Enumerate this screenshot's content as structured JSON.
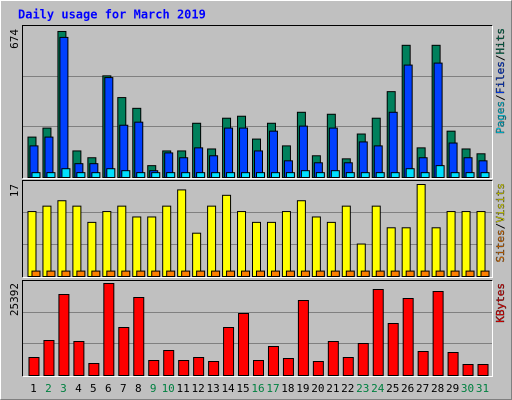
{
  "chart_data": {
    "type": "bar",
    "title": "Daily usage for March 2019",
    "categories": [
      "1",
      "2",
      "3",
      "4",
      "5",
      "6",
      "7",
      "8",
      "9",
      "10",
      "11",
      "12",
      "13",
      "14",
      "15",
      "16",
      "17",
      "18",
      "19",
      "20",
      "21",
      "22",
      "23",
      "24",
      "25",
      "26",
      "27",
      "28",
      "29",
      "30",
      "31"
    ],
    "category_colors": [
      "#000000",
      "#008040",
      "#008040",
      "#000000",
      "#000000",
      "#000000",
      "#000000",
      "#000000",
      "#008040",
      "#008040",
      "#000000",
      "#000000",
      "#000000",
      "#000000",
      "#000000",
      "#008040",
      "#008040",
      "#000000",
      "#000000",
      "#000000",
      "#000000",
      "#000000",
      "#008040",
      "#008040",
      "#000000",
      "#000000",
      "#000000",
      "#000000",
      "#000000",
      "#008040",
      "#008040"
    ],
    "legend_separator": "/",
    "panels": [
      {
        "ylim": [
          0,
          674
        ],
        "yticks": [
          674
        ],
        "series": [
          {
            "name": "Hits",
            "color": "#00805c",
            "values": [
              184,
              225,
              665,
              121,
              90,
              463,
              364,
              315,
              54,
              121,
              121,
              247,
              130,
              270,
              279,
              175,
              247,
              144,
              297,
              99,
              288,
              85,
              198,
              270,
              391,
              602,
              135,
              602,
              211,
              130,
              108
            ]
          },
          {
            "name": "Files",
            "color": "#0040ff",
            "values": [
              144,
              184,
              638,
              63,
              63,
              455,
              238,
              252,
              31,
              112,
              90,
              135,
              99,
              225,
              225,
              121,
              211,
              76,
              234,
              67,
              225,
              67,
              162,
              144,
              297,
              512,
              90,
              521,
              157,
              90,
              76
            ]
          },
          {
            "name": "Pages",
            "color": "#00e0ff",
            "values": [
              22,
              22,
              40,
              22,
              22,
              40,
              31,
              22,
              22,
              22,
              22,
              22,
              22,
              22,
              22,
              22,
              22,
              22,
              31,
              22,
              31,
              22,
              22,
              22,
              22,
              40,
              22,
              54,
              22,
              22,
              22
            ]
          }
        ]
      },
      {
        "ylim": [
          0,
          17
        ],
        "yticks": [
          17
        ],
        "series": [
          {
            "name": "Visits",
            "color": "#ffff00",
            "values": [
              12,
              13,
              14,
              13,
              10,
              12,
              13,
              11,
              11,
              13,
              16,
              8,
              13,
              15,
              12,
              10,
              10,
              12,
              14,
              11,
              10,
              13,
              6,
              13,
              9,
              9,
              17,
              9,
              12,
              12,
              12
            ]
          },
          {
            "name": "Sites",
            "color": "#ff8000",
            "values": [
              1,
              1,
              1,
              1,
              1,
              1,
              1,
              1,
              1,
              1,
              1,
              1,
              1,
              1,
              1,
              1,
              1,
              1,
              1,
              1,
              1,
              1,
              1,
              1,
              1,
              1,
              1,
              1,
              1,
              1,
              1
            ]
          }
        ]
      },
      {
        "ylim": [
          0,
          25392
        ],
        "yticks": [
          25392
        ],
        "series": [
          {
            "name": "KBytes",
            "color": "#ff0000",
            "values": [
              4968,
              9660,
              22356,
              9384,
              3312,
              25392,
              13248,
              21528,
              4140,
              6900,
              4140,
              4968,
              3864,
              13248,
              17112,
              4140,
              8004,
              4692,
              20700,
              3864,
              9384,
              4968,
              8832,
              23736,
              14352,
              21252,
              6624,
              23184,
              6348,
              3036,
              3036
            ]
          }
        ]
      }
    ]
  }
}
